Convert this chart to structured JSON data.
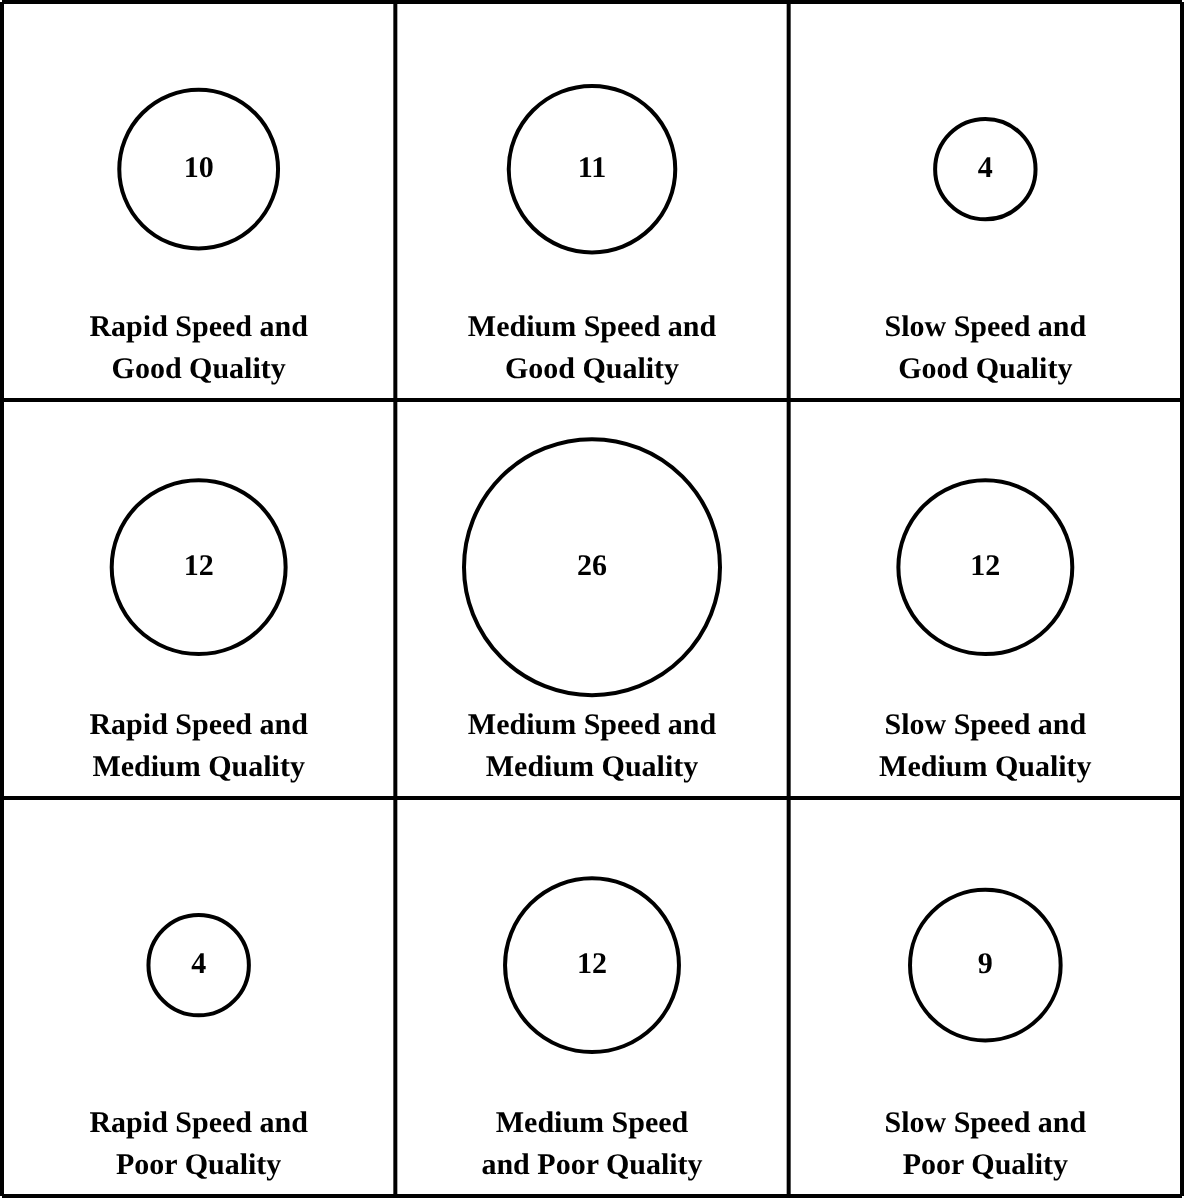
{
  "chart_data": {
    "type": "other",
    "categories": [
      "Rapid Speed and Good Quality",
      "Medium Speed and Good Quality",
      "Slow Speed and Good Quality",
      "Rapid Speed and Medium Quality",
      "Medium Speed and Medium Quality",
      "Slow Speed and Medium Quality",
      "Rapid Speed and Poor Quality",
      "Medium Speed and Poor Quality",
      "Slow Speed and Poor Quality"
    ],
    "values": [
      10,
      11,
      4,
      12,
      26,
      12,
      4,
      12,
      9
    ],
    "color": "#000000",
    "data_labels": true
  }
}
